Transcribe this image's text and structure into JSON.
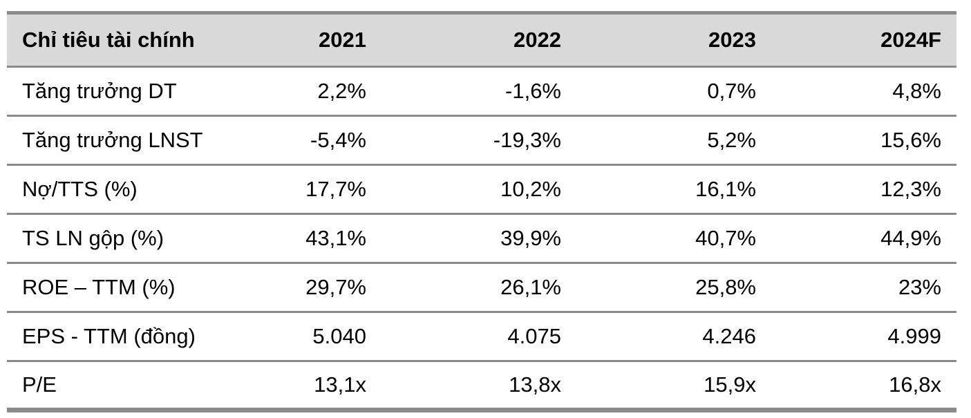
{
  "table": {
    "headers": [
      "Chỉ tiêu tài chính",
      "2021",
      "2022",
      "2023",
      "2024F"
    ],
    "rows": [
      {
        "label": "Tăng trưởng DT",
        "values": [
          "2,2%",
          "-1,6%",
          "0,7%",
          "4,8%"
        ]
      },
      {
        "label": "Tăng trưởng LNST",
        "values": [
          "-5,4%",
          "-19,3%",
          "5,2%",
          "15,6%"
        ]
      },
      {
        "label": "Nợ/TTS (%)",
        "values": [
          "17,7%",
          "10,2%",
          "16,1%",
          "12,3%"
        ]
      },
      {
        "label": "TS LN gộp (%)",
        "values": [
          "43,1%",
          "39,9%",
          "40,7%",
          "44,9%"
        ]
      },
      {
        "label": "ROE – TTM (%)",
        "values": [
          "29,7%",
          "26,1%",
          "25,8%",
          "23%"
        ]
      },
      {
        "label": "EPS - TTM (đồng)",
        "values": [
          "5.040",
          "4.075",
          "4.246",
          "4.999"
        ]
      },
      {
        "label": "P/E",
        "values": [
          "13,1x",
          "13,8x",
          "15,9x",
          "16,8x"
        ]
      }
    ]
  },
  "colors": {
    "header_background": "#d9d9d9",
    "rule": "#8a8a8a",
    "text": "#000000"
  }
}
